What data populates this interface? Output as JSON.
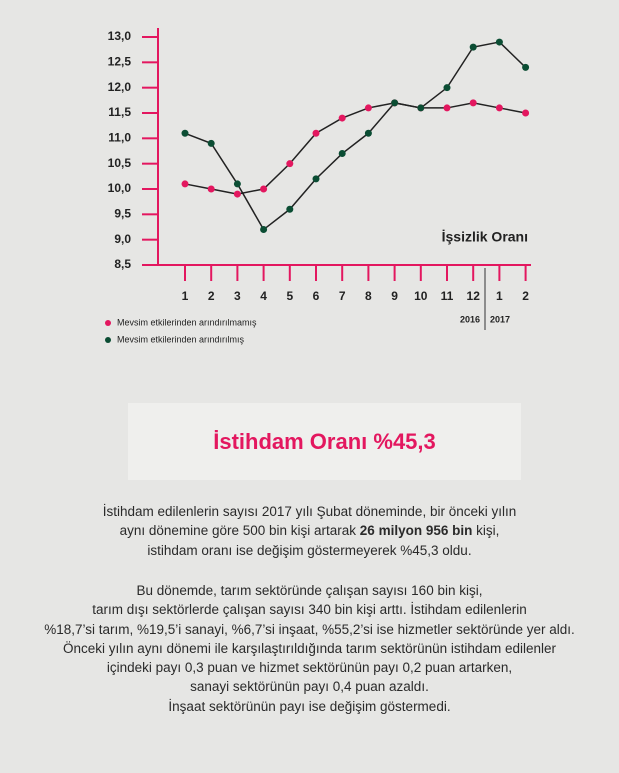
{
  "chart_data": {
    "type": "line",
    "title": "İşsizlik Oranı",
    "categories": [
      "1",
      "2",
      "3",
      "4",
      "5",
      "6",
      "7",
      "8",
      "9",
      "10",
      "11",
      "12",
      "1",
      "2"
    ],
    "year_labels": [
      "2016",
      "2017"
    ],
    "series": [
      {
        "name": "Mevsim etkilerinden arındırılmamış",
        "color": "#e3175f",
        "values": [
          10.1,
          10.0,
          9.9,
          10.0,
          10.5,
          11.1,
          11.4,
          11.6,
          11.7,
          11.6,
          11.6,
          11.7,
          11.6,
          11.5
        ]
      },
      {
        "name": "Mevsim etkilerinden arındırılmış",
        "color": "#0b4d33",
        "values": [
          11.1,
          10.9,
          10.1,
          9.2,
          9.6,
          10.2,
          10.7,
          11.1,
          11.7,
          11.6,
          12.0,
          12.8,
          12.9,
          12.4
        ]
      }
    ],
    "line_color": "#222222",
    "axis_color": "#e3175f",
    "ylim": [
      8.5,
      13.0
    ],
    "yticks": [
      {
        "value": 8.5,
        "label": "8,5"
      },
      {
        "value": 9.0,
        "label": "9,0"
      },
      {
        "value": 9.5,
        "label": "9,5"
      },
      {
        "value": 10.0,
        "label": "10,0"
      },
      {
        "value": 10.5,
        "label": "10,5"
      },
      {
        "value": 11.0,
        "label": "11,0"
      },
      {
        "value": 11.5,
        "label": "11,5"
      },
      {
        "value": 12.0,
        "label": "12,0"
      },
      {
        "value": 12.5,
        "label": "12,5"
      },
      {
        "value": 13.0,
        "label": "13,0"
      }
    ],
    "grid": false,
    "legend": "bottom-left"
  },
  "section": {
    "heading": "İstihdam Oranı %45,3",
    "paragraph_1": [
      {
        "text": "İstihdam edilenlerin sayısı 2017 yılı Şubat döneminde, bir önceki yılın"
      },
      {
        "before": "aynı dönemine göre 500 bin kişi artarak",
        "bold": "26 milyon 956 bin",
        "after": "kişi,"
      },
      {
        "text": "istihdam oranı ise değişim göstermeyerek %45,3 oldu."
      }
    ],
    "paragraph_2": [
      "Bu dönemde, tarım sektöründe çalışan sayısı 160 bin kişi,",
      "tarım dışı sektörlerde çalışan sayısı 340 bin kişi arttı. İstihdam edilenlerin",
      "%18,7’si tarım, %19,5’i sanayi, %6,7’si inşaat, %55,2’si ise hizmetler sektöründe yer aldı.",
      "Önceki yılın aynı dönemi ile karşılaştırıldığında tarım sektörünün istihdam edilenler",
      "içindeki payı 0,3 puan ve hizmet sektörünün payı 0,2 puan artarken,",
      "sanayi sektörünün payı 0,4 puan azaldı.",
      "İnşaat sektörünün payı ise değişim göstermedi."
    ]
  }
}
